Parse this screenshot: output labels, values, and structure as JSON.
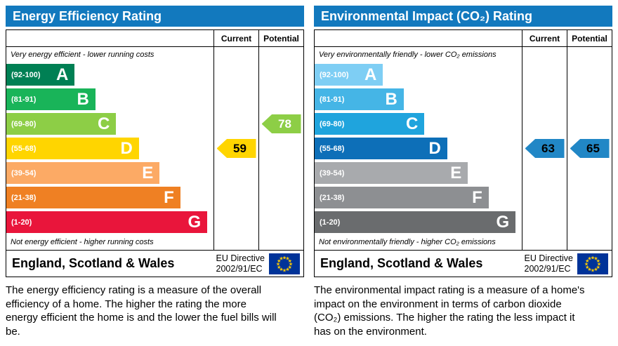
{
  "colors": {
    "header_bg": "#1279be",
    "header_text": "#ffffff",
    "eu_flag_bg": "#003399",
    "eu_star": "#ffcc00"
  },
  "chart_data": [
    {
      "type": "bar",
      "title": "Energy Efficiency Rating",
      "categories": [
        "A (92-100)",
        "B (81-91)",
        "C (69-80)",
        "D (55-68)",
        "E (39-54)",
        "F (21-38)",
        "G (1-20)"
      ],
      "values": [
        33,
        43,
        53,
        64,
        74,
        84,
        97
      ],
      "ylabel": "band scale (bar length % of column, decorative)",
      "current": 59,
      "current_band": "D",
      "potential": 78,
      "potential_band": "C"
    },
    {
      "type": "bar",
      "title": "Environmental Impact (CO₂) Rating",
      "categories": [
        "A (92-100)",
        "B (81-91)",
        "C (69-80)",
        "D (55-68)",
        "E (39-54)",
        "F (21-38)",
        "G (1-20)"
      ],
      "values": [
        33,
        43,
        53,
        64,
        74,
        84,
        97
      ],
      "ylabel": "band scale (bar length % of column, decorative)",
      "current": 63,
      "current_band": "D",
      "potential": 65,
      "potential_band": "D"
    }
  ],
  "panels": [
    {
      "title": "Energy Efficiency Rating",
      "columns": {
        "current": "Current",
        "potential": "Potential"
      },
      "top_note": "Very energy efficient - lower running costs",
      "bottom_note": "Not energy efficient - higher running costs",
      "bands": [
        {
          "range": "(92-100)",
          "letter": "A",
          "color": "#008054",
          "width_pct": 33
        },
        {
          "range": "(81-91)",
          "letter": "B",
          "color": "#19b459",
          "width_pct": 43
        },
        {
          "range": "(69-80)",
          "letter": "C",
          "color": "#8dce46",
          "width_pct": 53
        },
        {
          "range": "(55-68)",
          "letter": "D",
          "color": "#ffd500",
          "width_pct": 64
        },
        {
          "range": "(39-54)",
          "letter": "E",
          "color": "#fcaa65",
          "width_pct": 74
        },
        {
          "range": "(21-38)",
          "letter": "F",
          "color": "#ef8023",
          "width_pct": 84
        },
        {
          "range": "(1-20)",
          "letter": "G",
          "color": "#e9153b",
          "width_pct": 97
        }
      ],
      "current": {
        "value": "59",
        "band": "D",
        "color": "#ffd500",
        "text_color": "#000000"
      },
      "potential": {
        "value": "78",
        "band": "C",
        "color": "#8dce46",
        "text_color": "#ffffff"
      },
      "footer": {
        "region": "England, Scotland & Wales",
        "directive_line1": "EU Directive",
        "directive_line2": "2002/91/EC"
      },
      "description": "The energy efficiency rating is a measure of the overall efficiency of a home. The higher the rating the more energy efficient the home is and the lower the fuel bills will be."
    },
    {
      "title": "Environmental Impact (CO₂) Rating",
      "columns": {
        "current": "Current",
        "potential": "Potential"
      },
      "top_note": "Very environmentally friendly - lower CO₂ emissions",
      "bottom_note": "Not environmentally friendly - higher CO₂ emissions",
      "bands": [
        {
          "range": "(92-100)",
          "letter": "A",
          "color": "#7ecef4",
          "width_pct": 33
        },
        {
          "range": "(81-91)",
          "letter": "B",
          "color": "#45b5e6",
          "width_pct": 43
        },
        {
          "range": "(69-80)",
          "letter": "C",
          "color": "#1fa4dd",
          "width_pct": 53
        },
        {
          "range": "(55-68)",
          "letter": "D",
          "color": "#0d6fb8",
          "width_pct": 64
        },
        {
          "range": "(39-54)",
          "letter": "E",
          "color": "#a8aaad",
          "width_pct": 74
        },
        {
          "range": "(21-38)",
          "letter": "F",
          "color": "#8d8f92",
          "width_pct": 84
        },
        {
          "range": "(1-20)",
          "letter": "G",
          "color": "#6a6c6e",
          "width_pct": 97
        }
      ],
      "current": {
        "value": "63",
        "band": "D",
        "color": "#2187c6",
        "text_color": "#000000"
      },
      "potential": {
        "value": "65",
        "band": "D",
        "color": "#2187c6",
        "text_color": "#000000"
      },
      "footer": {
        "region": "England, Scotland & Wales",
        "directive_line1": "EU Directive",
        "directive_line2": "2002/91/EC"
      },
      "description": "The environmental impact rating is a measure of a home's impact on the environment in terms of carbon dioxide (CO₂) emissions. The higher the rating the less impact it has on the environment."
    }
  ]
}
